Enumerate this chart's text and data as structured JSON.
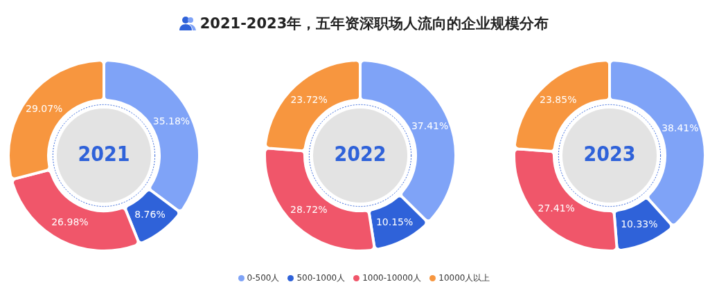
{
  "chart_data": [
    {
      "type": "other",
      "title": "2021-2023年，五年资深职场人流向的企业规模分布"
    },
    {
      "type": "donut",
      "title": "2021",
      "categories": [
        "0-500人",
        "500-1000人",
        "1000-10000人",
        "10000人以上"
      ],
      "values": [
        35.18,
        8.76,
        26.98,
        29.07
      ],
      "value_labels": [
        "35.18%",
        "8.76%",
        "26.98%",
        "29.07%"
      ],
      "colors": [
        "#7fa3f7",
        "#2f62d9",
        "#f0566a",
        "#f7963f"
      ],
      "legend": "bottom"
    },
    {
      "type": "donut",
      "title": "2022",
      "categories": [
        null,
        null,
        null,
        null
      ],
      "values": [
        37.41,
        10.15,
        28.72,
        23.72
      ],
      "value_labels": [
        "37.41%",
        "10.15%",
        "28.72%",
        "23.72%"
      ],
      "colors": [
        "#7fa3f7",
        "#2f62d9",
        "#f0566a",
        "#f7963f"
      ]
    },
    {
      "type": "donut",
      "title": "2023",
      "categories": [
        null,
        null,
        null,
        null
      ],
      "values": [
        38.41,
        10.33,
        27.41,
        23.85
      ],
      "value_labels": [
        "38.41%",
        "10.33%",
        "27.41%",
        "23.85%"
      ],
      "colors": [
        "#7fa3f7",
        "#2f62d9",
        "#f0566a",
        "#f7963f"
      ]
    }
  ]
}
